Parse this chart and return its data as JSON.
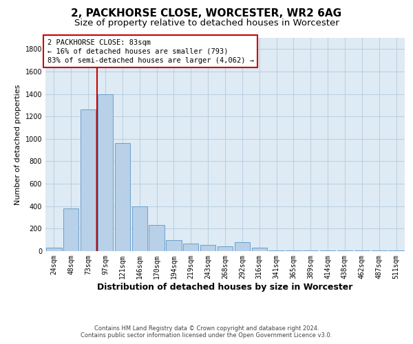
{
  "title": "2, PACKHORSE CLOSE, WORCESTER, WR2 6AG",
  "subtitle": "Size of property relative to detached houses in Worcester",
  "xlabel": "Distribution of detached houses by size in Worcester",
  "ylabel": "Number of detached properties",
  "property_label": "2 PACKHORSE CLOSE: 83sqm",
  "annotation_line1": "← 16% of detached houses are smaller (793)",
  "annotation_line2": "83% of semi-detached houses are larger (4,062) →",
  "footer_line1": "Contains HM Land Registry data © Crown copyright and database right 2024.",
  "footer_line2": "Contains public sector information licensed under the Open Government Licence v3.0.",
  "bar_color": "#b8d0e8",
  "bar_edge_color": "#6aa0cc",
  "red_line_color": "#cc0000",
  "annotation_box_color": "#cc0000",
  "background_color": "#ffffff",
  "plot_bg_color": "#deeaf4",
  "grid_color": "#b8cfe0",
  "categories": [
    "24sqm",
    "48sqm",
    "73sqm",
    "97sqm",
    "121sqm",
    "146sqm",
    "170sqm",
    "194sqm",
    "219sqm",
    "243sqm",
    "268sqm",
    "292sqm",
    "316sqm",
    "341sqm",
    "365sqm",
    "389sqm",
    "414sqm",
    "438sqm",
    "462sqm",
    "487sqm",
    "511sqm"
  ],
  "values": [
    30,
    380,
    1260,
    1400,
    960,
    400,
    230,
    100,
    70,
    55,
    45,
    80,
    30,
    5,
    5,
    5,
    5,
    5,
    5,
    5,
    5
  ],
  "ylim": [
    0,
    1900
  ],
  "yticks": [
    0,
    200,
    400,
    600,
    800,
    1000,
    1200,
    1400,
    1600,
    1800
  ],
  "red_line_x": 2.5,
  "title_fontsize": 11,
  "subtitle_fontsize": 9.5,
  "annot_fontsize": 7.5,
  "xlabel_fontsize": 9,
  "ylabel_fontsize": 8,
  "tick_fontsize": 7,
  "footer_fontsize": 6
}
